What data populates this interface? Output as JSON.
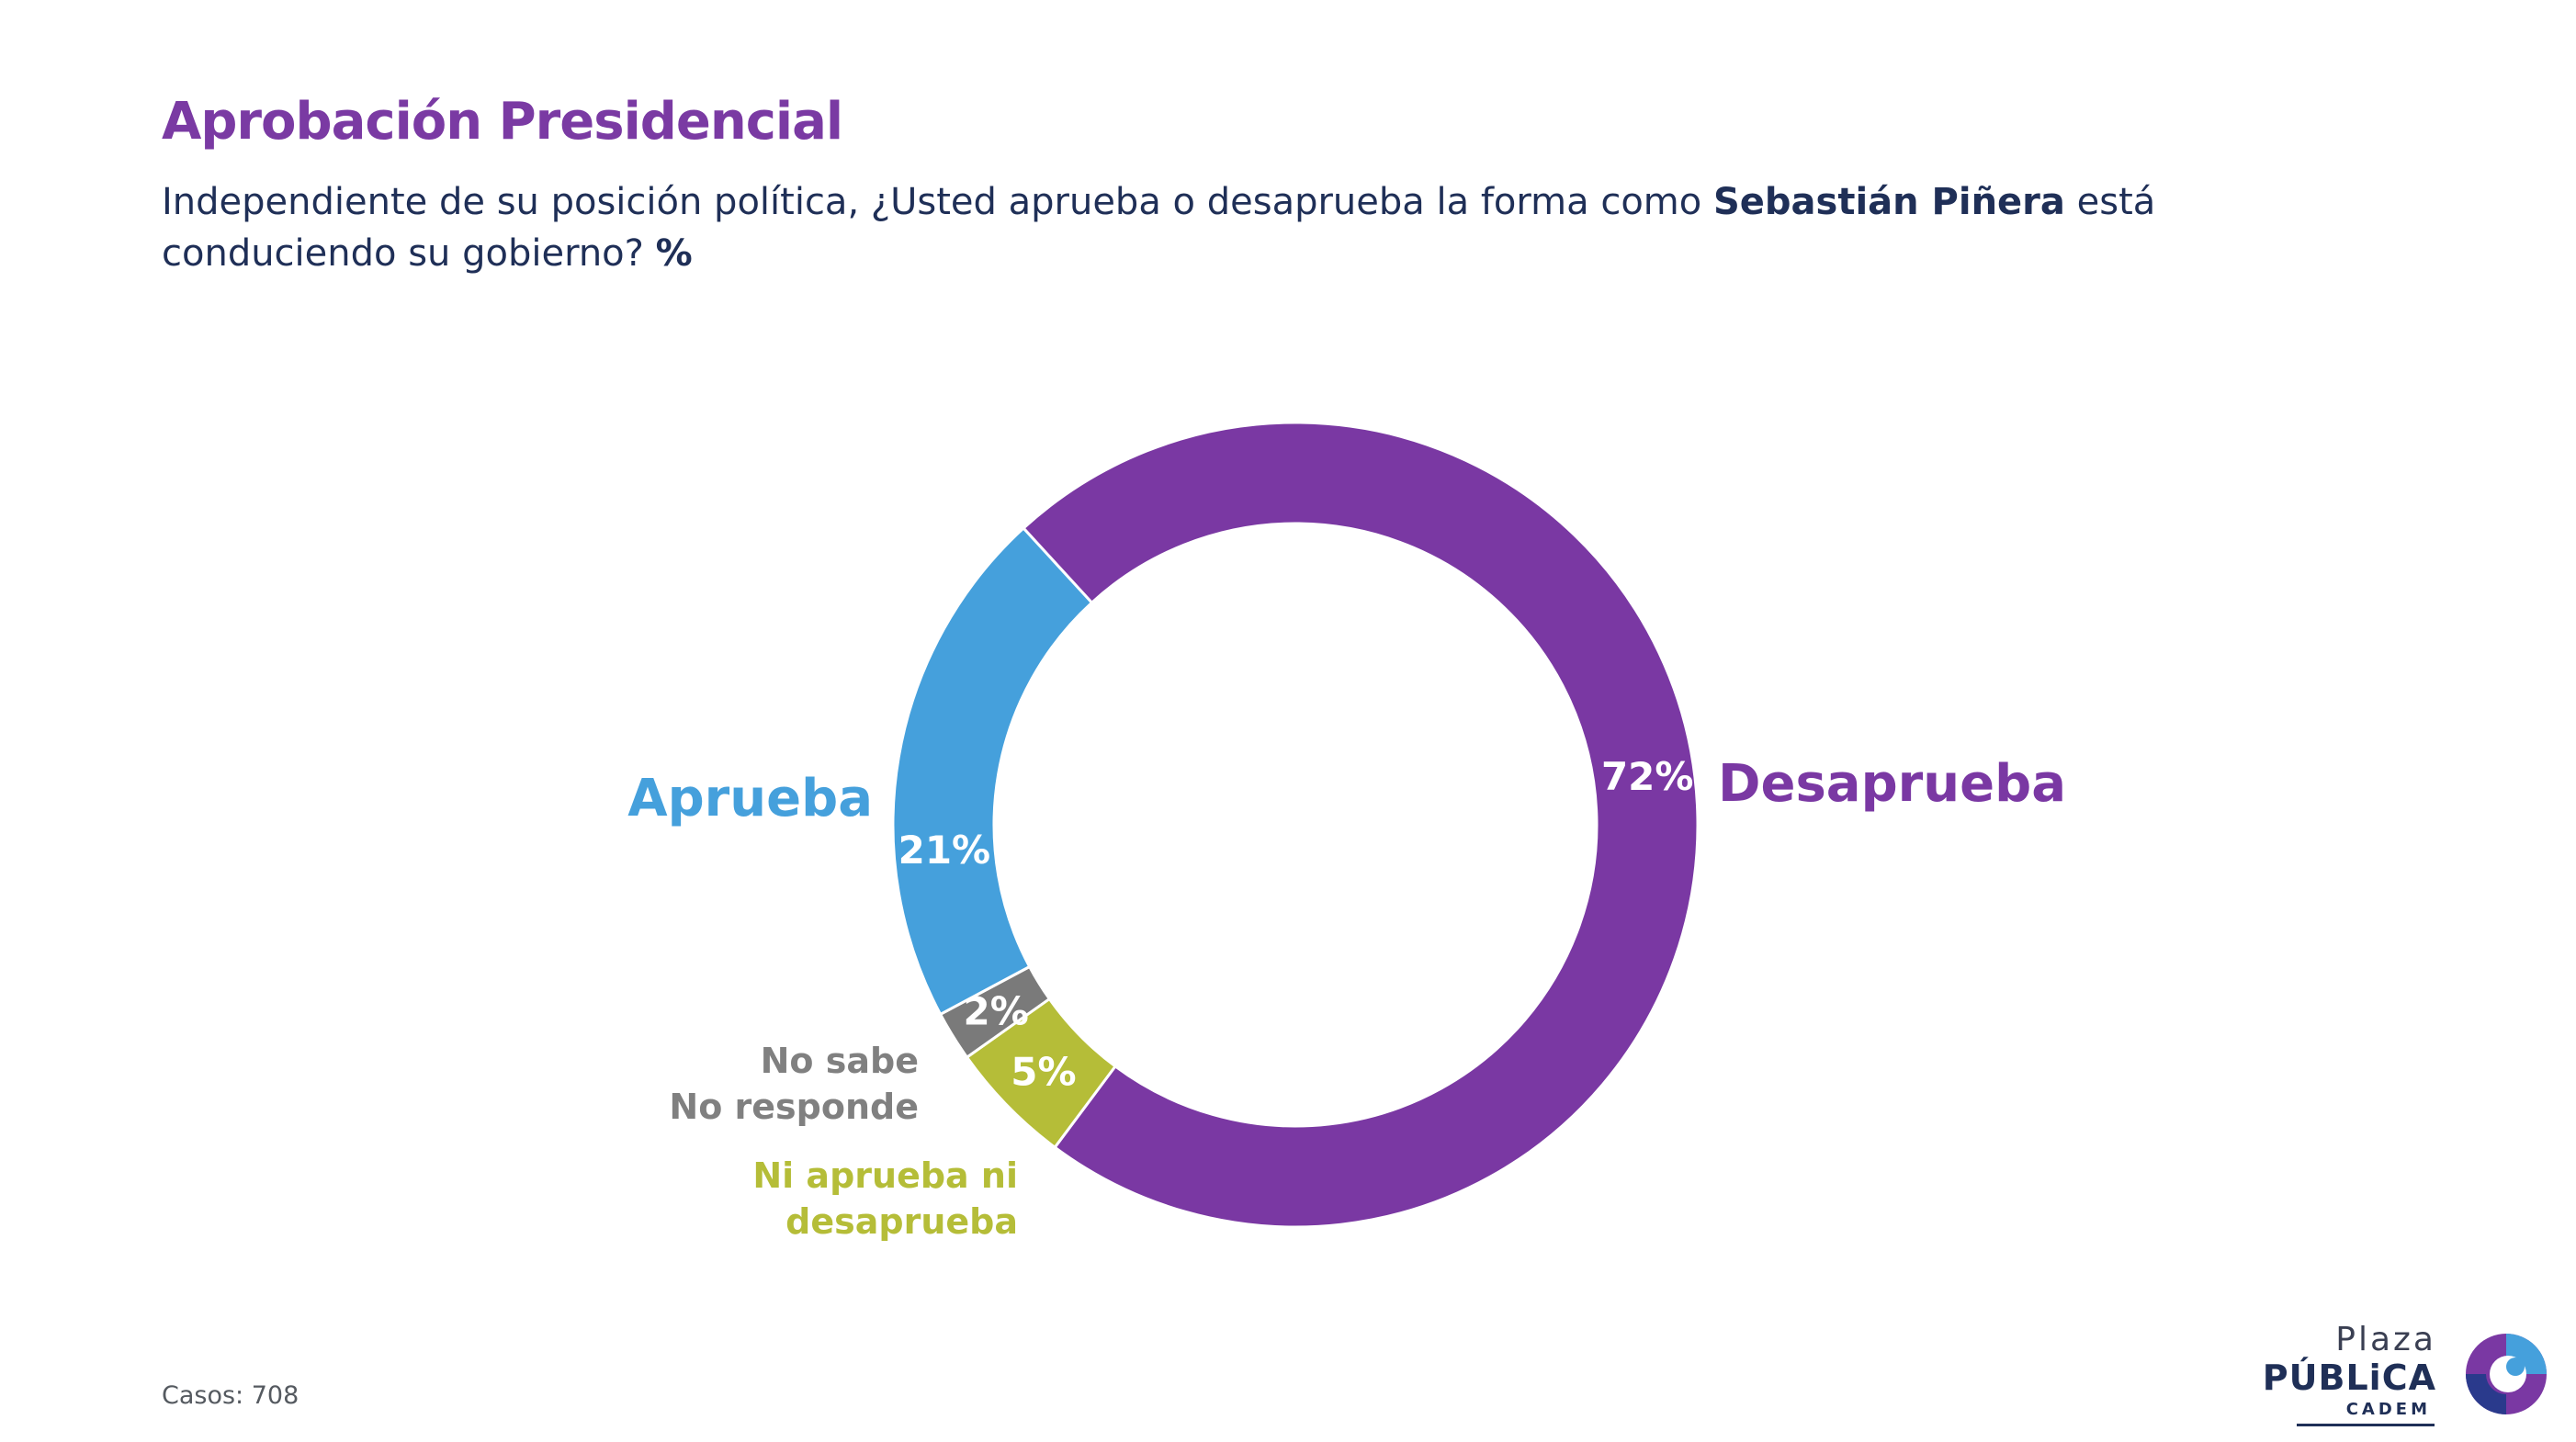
{
  "header": {
    "title": "Aprobación Presidencial",
    "subtitle_pre": "Independiente de su posición política, ¿Usted aprueba o desaprueba la forma como ",
    "subtitle_bold": "Sebastián Piñera",
    "subtitle_mid": " está conduciendo su gobierno? ",
    "subtitle_unit": "%"
  },
  "footer": {
    "casos": "Casos: 708"
  },
  "logo": {
    "plaza": "Plaza",
    "publica": "PÚBLiCA",
    "cadem": "CADEM"
  },
  "chart_data": {
    "type": "pie",
    "style": "donut",
    "start_category": "Desaprueba",
    "direction": "clockwise",
    "slices": [
      {
        "label": "Desaprueba",
        "label_lines": [
          "Desaprueba"
        ],
        "value": 72,
        "value_label": "72%",
        "color": "#7a38a3",
        "label_color": "#7a38a3",
        "label_side": "right"
      },
      {
        "label": "Ni aprueba ni desaprueba",
        "label_lines": [
          "Ni aprueba ni",
          "desaprueba"
        ],
        "value": 5,
        "value_label": "5%",
        "color": "#b5bd38",
        "label_color": "#b5bd38",
        "label_side": "left"
      },
      {
        "label": "No sabe No responde",
        "label_lines": [
          "No sabe",
          "No responde"
        ],
        "value": 2,
        "value_label": "2%",
        "color": "#7a7a7a",
        "label_color": "#808080",
        "label_side": "left"
      },
      {
        "label": "Aprueba",
        "label_lines": [
          "Aprueba"
        ],
        "value": 21,
        "value_label": "21%",
        "color": "#45a0dc",
        "label_color": "#45a0dc",
        "label_side": "left"
      }
    ]
  }
}
